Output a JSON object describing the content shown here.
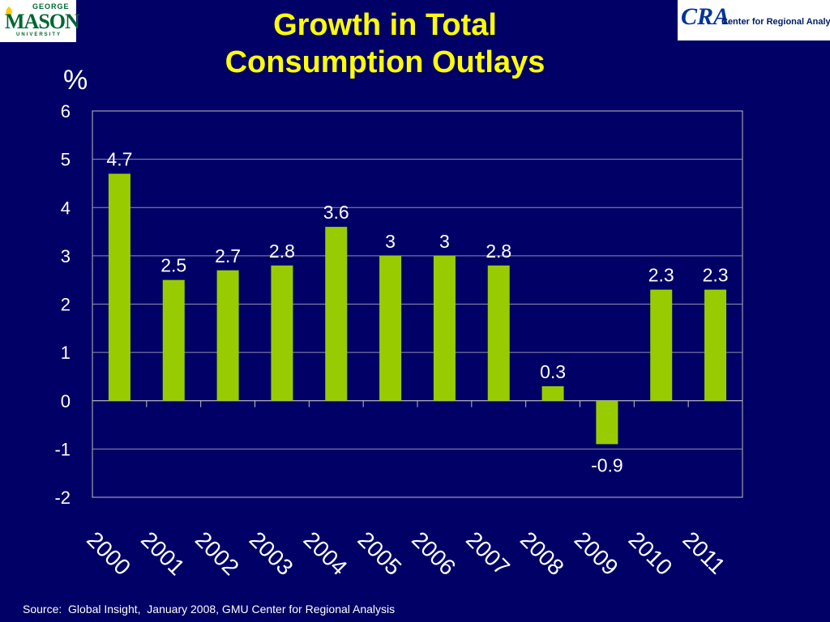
{
  "logos": {
    "left": {
      "top": "GEORGE",
      "mid": "MASON",
      "bottom": "UNIVERSITY"
    },
    "right": {
      "mark": "CRA",
      "text": "Center for Regional Analysis"
    }
  },
  "colors": {
    "background": "#000066",
    "title": "#ffff00",
    "bar": "#99cc00",
    "text": "#ffffff",
    "grid": "#ffffff"
  },
  "chart_data": {
    "type": "bar",
    "title": [
      "Growth in Total",
      "Consumption Outlays"
    ],
    "ylabel": "%",
    "xlabel": "",
    "categories": [
      "2000",
      "2001",
      "2002",
      "2003",
      "2004",
      "2005",
      "2006",
      "2007",
      "2008",
      "2009",
      "2010",
      "2011"
    ],
    "values": [
      4.7,
      2.5,
      2.7,
      2.8,
      3.6,
      3,
      3,
      2.8,
      0.3,
      -0.9,
      2.3,
      2.3
    ],
    "data_labels": [
      "4.7",
      "2.5",
      "2.7",
      "2.8",
      "3.6",
      "3",
      "3",
      "2.8",
      "0.3",
      "-0.9",
      "2.3",
      "2.3"
    ],
    "ylim": [
      -2,
      6
    ],
    "yticks": [
      "-2",
      "-1",
      "0",
      "1",
      "2",
      "3",
      "4",
      "5",
      "6"
    ],
    "grid": true,
    "legend": "none"
  },
  "source": "Source:  Global Insight,  January 2008, GMU Center for Regional Analysis"
}
